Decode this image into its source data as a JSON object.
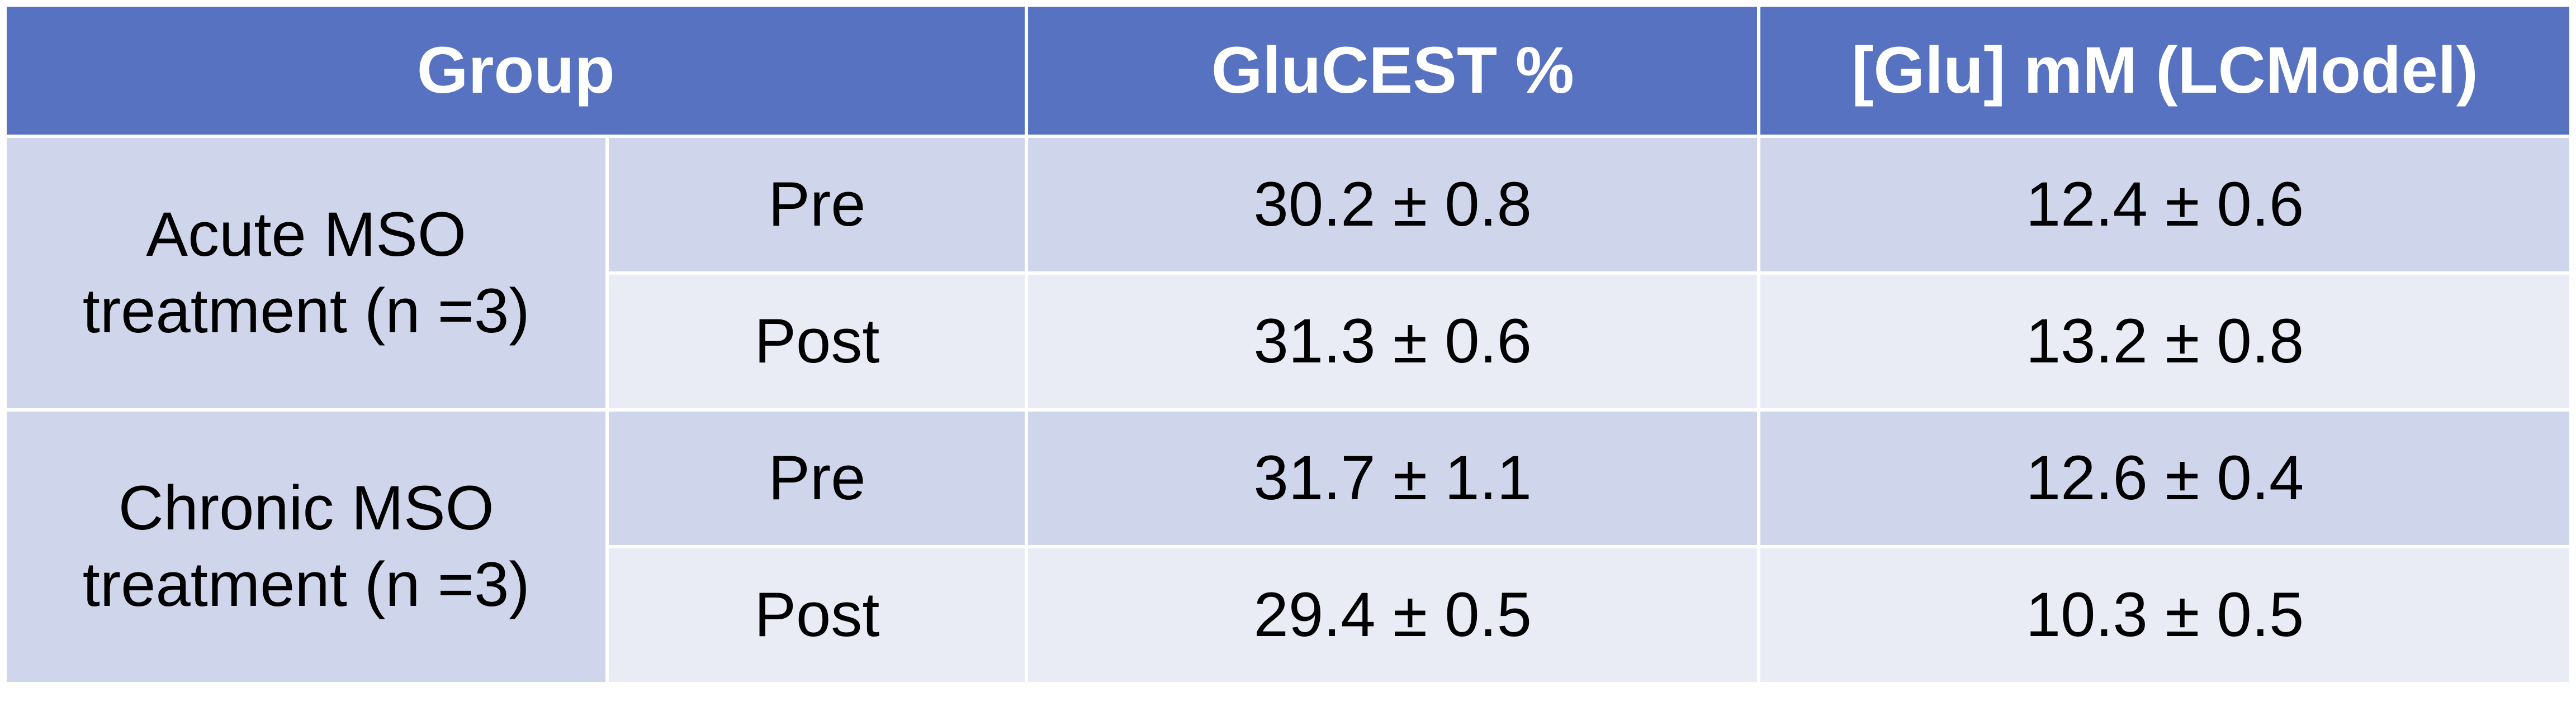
{
  "table": {
    "header": [
      "Group",
      "GluCEST %",
      "[Glu] mM (LCModel)"
    ],
    "groups": [
      {
        "label": "Acute MSO treatment (n =3)",
        "rows": [
          [
            "Pre",
            "30.2 ± 0.8",
            "12.4 ± 0.6"
          ],
          [
            "Post",
            "31.3 ± 0.6",
            "13.2 ± 0.8"
          ]
        ]
      },
      {
        "label": "Chronic MSO treatment (n =3)",
        "rows": [
          [
            "Pre",
            "31.7 ± 1.1",
            "12.6 ± 0.4"
          ],
          [
            "Post",
            "29.4 ± 0.5",
            "10.3 ± 0.5"
          ]
        ]
      }
    ]
  }
}
